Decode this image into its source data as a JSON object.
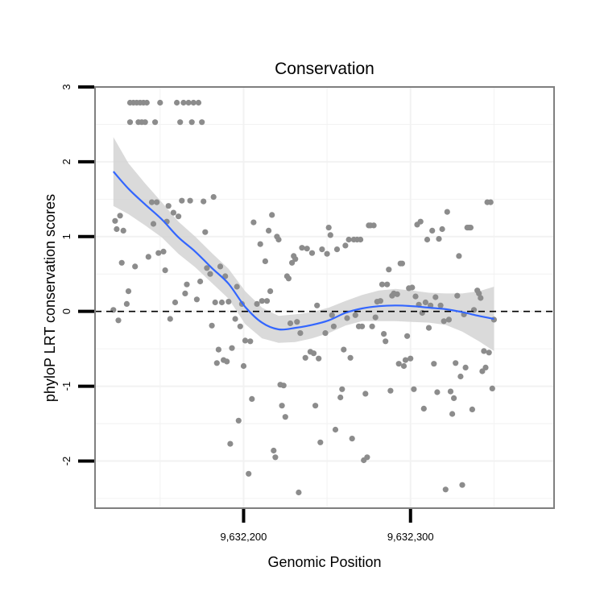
{
  "chart_data": {
    "type": "scatter",
    "title": "Conservation",
    "xlabel": "Genomic Position",
    "ylabel": "phyloP LRT conservation scores",
    "xlim": [
      9632111,
      9632386
    ],
    "ylim": [
      -2.63,
      3.0
    ],
    "x_ticks": [
      {
        "value": 9632200,
        "label": "9,632,200"
      },
      {
        "value": 9632300,
        "label": "9,632,300"
      }
    ],
    "y_ticks": [
      {
        "value": -2,
        "label": "-2"
      },
      {
        "value": -1,
        "label": "-1"
      },
      {
        "value": 0,
        "label": "0"
      },
      {
        "value": 1,
        "label": "1"
      },
      {
        "value": 2,
        "label": "2"
      },
      {
        "value": 3,
        "label": "3"
      }
    ],
    "reference_line": {
      "y": 0,
      "style": "dashed"
    },
    "colors": {
      "points": "#8c8c8c",
      "smooth": "#3366ff",
      "ribbon": "#d3d3d3",
      "panel_border": "#7f7f7f",
      "grid": "#f2f2f2"
    },
    "points": [
      [
        9632123,
        1.21
      ],
      [
        9632124,
        1.1
      ],
      [
        9632125,
        -0.12
      ],
      [
        9632126,
        1.28
      ],
      [
        9632127,
        0.65
      ],
      [
        9632128,
        1.08
      ],
      [
        9632122,
        0.02
      ],
      [
        9632130,
        0.1
      ],
      [
        9632131,
        0.27
      ],
      [
        9632132,
        2.79
      ],
      [
        9632132,
        2.53
      ],
      [
        9632134,
        2.79
      ],
      [
        9632135,
        0.6
      ],
      [
        9632136,
        2.79
      ],
      [
        9632137,
        2.53
      ],
      [
        9632138,
        2.79
      ],
      [
        9632139,
        2.53
      ],
      [
        9632140,
        2.79
      ],
      [
        9632141,
        2.53
      ],
      [
        9632142,
        2.79
      ],
      [
        9632143,
        0.73
      ],
      [
        9632145,
        1.46
      ],
      [
        9632146,
        1.17
      ],
      [
        9632147,
        2.53
      ],
      [
        9632148,
        1.46
      ],
      [
        9632149,
        0.78
      ],
      [
        9632150,
        2.79
      ],
      [
        9632152,
        0.8
      ],
      [
        9632153,
        0.55
      ],
      [
        9632154,
        1.2
      ],
      [
        9632155,
        1.41
      ],
      [
        9632156,
        -0.1
      ],
      [
        9632158,
        1.32
      ],
      [
        9632159,
        0.12
      ],
      [
        9632160,
        2.79
      ],
      [
        9632161,
        1.27
      ],
      [
        9632162,
        2.53
      ],
      [
        9632163,
        1.48
      ],
      [
        9632164,
        2.79
      ],
      [
        9632165,
        0.24
      ],
      [
        9632166,
        0.36
      ],
      [
        9632167,
        2.79
      ],
      [
        9632168,
        1.48
      ],
      [
        9632169,
        2.53
      ],
      [
        9632170,
        2.79
      ],
      [
        9632172,
        0.16
      ],
      [
        9632173,
        2.79
      ],
      [
        9632174,
        0.4
      ],
      [
        9632175,
        2.53
      ],
      [
        9632176,
        1.47
      ],
      [
        9632177,
        1.06
      ],
      [
        9632178,
        0.58
      ],
      [
        9632180,
        0.5
      ],
      [
        9632181,
        -0.19
      ],
      [
        9632182,
        1.53
      ],
      [
        9632183,
        0.12
      ],
      [
        9632184,
        -0.69
      ],
      [
        9632185,
        -0.51
      ],
      [
        9632186,
        0.6
      ],
      [
        9632187,
        0.12
      ],
      [
        9632188,
        -0.65
      ],
      [
        9632189,
        0.47
      ],
      [
        9632190,
        -0.67
      ],
      [
        9632191,
        0.13
      ],
      [
        9632192,
        -1.77
      ],
      [
        9632193,
        -0.49
      ],
      [
        9632195,
        -0.1
      ],
      [
        9632196,
        0.33
      ],
      [
        9632197,
        -1.46
      ],
      [
        9632198,
        -0.2
      ],
      [
        9632199,
        0.1
      ],
      [
        9632200,
        -0.73
      ],
      [
        9632201,
        -0.39
      ],
      [
        9632203,
        -2.17
      ],
      [
        9632204,
        -0.4
      ],
      [
        9632205,
        -1.17
      ],
      [
        9632206,
        1.19
      ],
      [
        9632208,
        0.1
      ],
      [
        9632210,
        0.9
      ],
      [
        9632211,
        0.14
      ],
      [
        9632213,
        0.67
      ],
      [
        9632214,
        0.14
      ],
      [
        9632215,
        1.08
      ],
      [
        9632216,
        0.27
      ],
      [
        9632217,
        1.29
      ],
      [
        9632218,
        -1.86
      ],
      [
        9632219,
        -1.95
      ],
      [
        9632220,
        1.0
      ],
      [
        9632221,
        0.96
      ],
      [
        9632222,
        -0.98
      ],
      [
        9632223,
        -1.26
      ],
      [
        9632224,
        -0.99
      ],
      [
        9632225,
        -1.41
      ],
      [
        9632226,
        0.47
      ],
      [
        9632227,
        0.44
      ],
      [
        9632228,
        -0.16
      ],
      [
        9632229,
        0.65
      ],
      [
        9632230,
        0.74
      ],
      [
        9632231,
        0.7
      ],
      [
        9632232,
        -0.14
      ],
      [
        9632233,
        -2.42
      ],
      [
        9632234,
        -0.29
      ],
      [
        9632235,
        0.85
      ],
      [
        9632237,
        -0.62
      ],
      [
        9632238,
        0.84
      ],
      [
        9632240,
        -0.54
      ],
      [
        9632241,
        0.78
      ],
      [
        9632242,
        -0.56
      ],
      [
        9632243,
        -1.26
      ],
      [
        9632244,
        0.08
      ],
      [
        9632245,
        -0.63
      ],
      [
        9632246,
        -1.75
      ],
      [
        9632247,
        0.83
      ],
      [
        9632249,
        -0.29
      ],
      [
        9632250,
        0.77
      ],
      [
        9632251,
        1.12
      ],
      [
        9632252,
        1.02
      ],
      [
        9632253,
        -0.05
      ],
      [
        9632254,
        -0.2
      ],
      [
        9632255,
        -1.58
      ],
      [
        9632256,
        0.83
      ],
      [
        9632258,
        -1.15
      ],
      [
        9632259,
        -1.04
      ],
      [
        9632260,
        -0.51
      ],
      [
        9632261,
        0.88
      ],
      [
        9632262,
        -0.09
      ],
      [
        9632263,
        0.96
      ],
      [
        9632264,
        -0.62
      ],
      [
        9632265,
        -1.7
      ],
      [
        9632266,
        0.96
      ],
      [
        9632267,
        -0.05
      ],
      [
        9632268,
        0.96
      ],
      [
        9632269,
        -0.2
      ],
      [
        9632270,
        0.96
      ],
      [
        9632271,
        -0.2
      ],
      [
        9632272,
        -1.99
      ],
      [
        9632273,
        -1.1
      ],
      [
        9632274,
        -1.95
      ],
      [
        9632275,
        1.15
      ],
      [
        9632276,
        1.15
      ],
      [
        9632277,
        -0.2
      ],
      [
        9632278,
        1.15
      ],
      [
        9632279,
        -0.08
      ],
      [
        9632280,
        0.13
      ],
      [
        9632282,
        0.14
      ],
      [
        9632283,
        0.36
      ],
      [
        9632284,
        -0.3
      ],
      [
        9632285,
        -0.4
      ],
      [
        9632286,
        0.36
      ],
      [
        9632287,
        0.56
      ],
      [
        9632288,
        -1.06
      ],
      [
        9632289,
        0.21
      ],
      [
        9632290,
        0.24
      ],
      [
        9632292,
        0.23
      ],
      [
        9632293,
        -0.7
      ],
      [
        9632294,
        0.64
      ],
      [
        9632295,
        0.64
      ],
      [
        9632296,
        -0.73
      ],
      [
        9632297,
        -0.65
      ],
      [
        9632298,
        -0.33
      ],
      [
        9632299,
        0.31
      ],
      [
        9632300,
        -0.63
      ],
      [
        9632301,
        0.32
      ],
      [
        9632302,
        -1.04
      ],
      [
        9632303,
        0.2
      ],
      [
        9632304,
        1.16
      ],
      [
        9632305,
        0.09
      ],
      [
        9632306,
        1.2
      ],
      [
        9632307,
        -0.02
      ],
      [
        9632308,
        -1.3
      ],
      [
        9632309,
        0.12
      ],
      [
        9632310,
        0.96
      ],
      [
        9632311,
        -0.22
      ],
      [
        9632312,
        0.08
      ],
      [
        9632313,
        1.08
      ],
      [
        9632314,
        -0.7
      ],
      [
        9632315,
        0.19
      ],
      [
        9632316,
        -1.08
      ],
      [
        9632317,
        0.97
      ],
      [
        9632318,
        0.08
      ],
      [
        9632319,
        1.1
      ],
      [
        9632320,
        -0.13
      ],
      [
        9632321,
        -2.38
      ],
      [
        9632322,
        1.33
      ],
      [
        9632323,
        -0.11
      ],
      [
        9632324,
        -1.07
      ],
      [
        9632325,
        -1.37
      ],
      [
        9632326,
        -1.16
      ],
      [
        9632327,
        -0.69
      ],
      [
        9632328,
        0.21
      ],
      [
        9632329,
        0.74
      ],
      [
        9632330,
        -0.87
      ],
      [
        9632331,
        -2.32
      ],
      [
        9632332,
        -0.04
      ],
      [
        9632333,
        -0.75
      ],
      [
        9632334,
        1.12
      ],
      [
        9632335,
        1.12
      ],
      [
        9632336,
        1.12
      ],
      [
        9632337,
        -1.31
      ],
      [
        9632338,
        0.02
      ],
      [
        9632340,
        0.28
      ],
      [
        9632341,
        0.24
      ],
      [
        9632342,
        0.18
      ],
      [
        9632343,
        -0.8
      ],
      [
        9632344,
        -0.53
      ],
      [
        9632345,
        -0.75
      ],
      [
        9632346,
        1.46
      ],
      [
        9632347,
        -0.55
      ],
      [
        9632348,
        1.46
      ],
      [
        9632349,
        -1.03
      ],
      [
        9632350,
        -0.11
      ]
    ],
    "smooth": {
      "x": [
        9632122,
        9632131,
        9632141,
        9632151,
        9632161,
        9632171,
        9632181,
        9632191,
        9632201,
        9632211,
        9632221,
        9632231,
        9632241,
        9632251,
        9632261,
        9632271,
        9632281,
        9632291,
        9632301,
        9632311,
        9632321,
        9632331,
        9632341,
        9632350
      ],
      "fit": [
        1.87,
        1.64,
        1.43,
        1.23,
        0.99,
        0.8,
        0.58,
        0.37,
        0.06,
        -0.15,
        -0.24,
        -0.22,
        -0.18,
        -0.12,
        -0.02,
        0.04,
        0.07,
        0.08,
        0.07,
        0.05,
        0.03,
        -0.01,
        -0.06,
        -0.1
      ],
      "upper": [
        2.33,
        1.98,
        1.71,
        1.46,
        1.2,
        1.0,
        0.78,
        0.57,
        0.27,
        0.05,
        -0.06,
        -0.04,
        -0.01,
        0.05,
        0.14,
        0.22,
        0.28,
        0.3,
        0.28,
        0.25,
        0.24,
        0.24,
        0.27,
        0.33
      ],
      "lower": [
        1.41,
        1.3,
        1.15,
        0.99,
        0.77,
        0.59,
        0.38,
        0.17,
        -0.17,
        -0.36,
        -0.42,
        -0.41,
        -0.36,
        -0.29,
        -0.19,
        -0.13,
        -0.13,
        -0.13,
        -0.14,
        -0.15,
        -0.18,
        -0.27,
        -0.4,
        -0.53
      ]
    }
  }
}
